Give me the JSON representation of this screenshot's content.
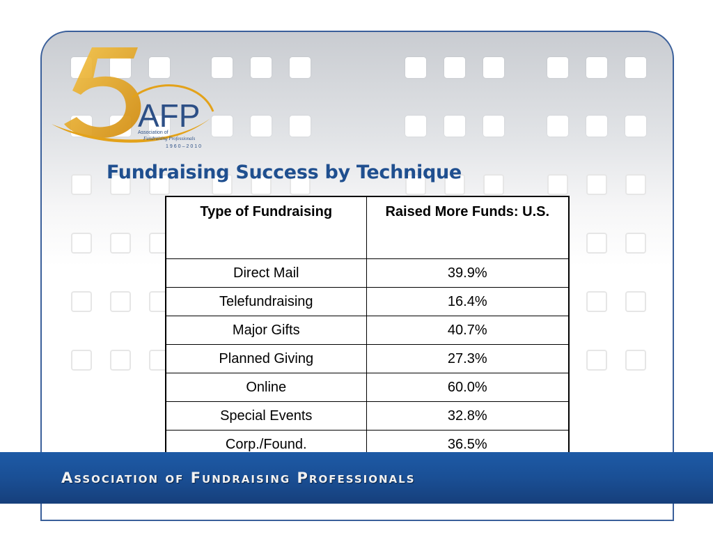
{
  "logo": {
    "numeral": "5",
    "acronym": "AFP",
    "line1": "Association of",
    "line2": "Fundraising Professionals",
    "years": "1960–2010",
    "colors": {
      "gold": "#e3a21a",
      "blue": "#2c4f86"
    }
  },
  "slide": {
    "title": "Fundraising Success by Technique"
  },
  "table": {
    "headers": [
      "Type of Fundraising",
      "Raised More Funds: U.S."
    ],
    "rows": [
      [
        "Direct Mail",
        "39.9%"
      ],
      [
        "Telefundraising",
        "16.4%"
      ],
      [
        "Major Gifts",
        "40.7%"
      ],
      [
        "Planned Giving",
        "27.3%"
      ],
      [
        "Online",
        "60.0%"
      ],
      [
        "Special Events",
        "32.8%"
      ],
      [
        "Corp./Found.",
        "36.5%"
      ]
    ]
  },
  "banner": {
    "text": "Association of Fundraising Professionals",
    "color": "#1a4f95"
  }
}
